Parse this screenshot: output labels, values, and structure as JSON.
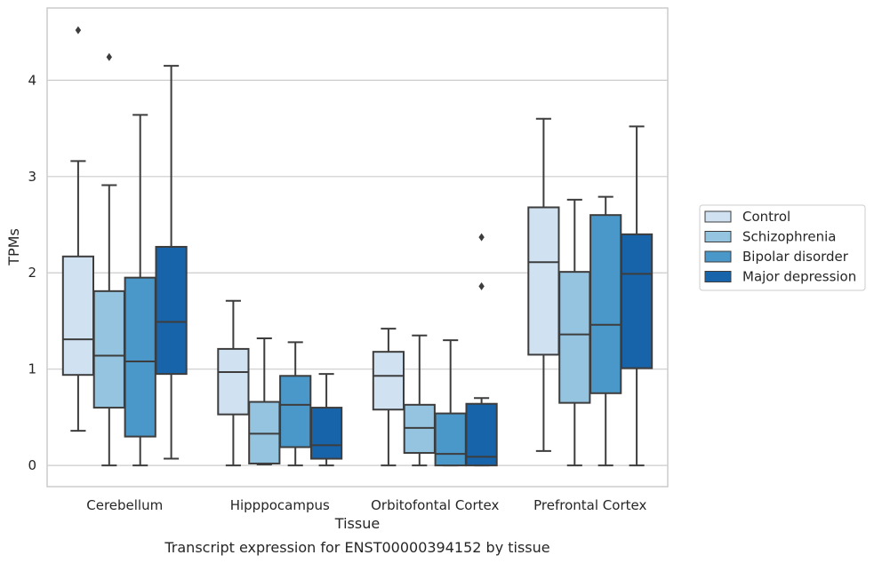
{
  "chart_data": {
    "type": "box",
    "title": "Transcript expression for ENST00000394152 by tissue",
    "xlabel": "Tissue",
    "ylabel": "TPMs",
    "ylim": [
      -0.22,
      4.75
    ],
    "yticks": [
      0,
      1,
      2,
      3,
      4
    ],
    "grid": true,
    "legend_position": "right",
    "categories": [
      "Cerebellum",
      "Hipppocampus",
      "Orbitofontal Cortex",
      "Prefrontal Cortex"
    ],
    "series": [
      {
        "name": "Control",
        "color": "#d0e1f2",
        "boxes": [
          {
            "whislo": 0.36,
            "q1": 0.94,
            "med": 1.31,
            "q3": 2.17,
            "whishi": 3.16,
            "fliers": [
              4.52
            ]
          },
          {
            "whislo": 0.0,
            "q1": 0.53,
            "med": 0.97,
            "q3": 1.21,
            "whishi": 1.71,
            "fliers": []
          },
          {
            "whislo": 0.0,
            "q1": 0.58,
            "med": 0.93,
            "q3": 1.18,
            "whishi": 1.42,
            "fliers": []
          },
          {
            "whislo": 0.15,
            "q1": 1.15,
            "med": 2.11,
            "q3": 2.68,
            "whishi": 3.6,
            "fliers": []
          }
        ]
      },
      {
        "name": "Schizophrenia",
        "color": "#94c4df",
        "boxes": [
          {
            "whislo": 0.0,
            "q1": 0.6,
            "med": 1.14,
            "q3": 1.81,
            "whishi": 2.91,
            "fliers": [
              4.24
            ]
          },
          {
            "whislo": 0.01,
            "q1": 0.02,
            "med": 0.33,
            "q3": 0.66,
            "whishi": 1.32,
            "fliers": []
          },
          {
            "whislo": 0.0,
            "q1": 0.13,
            "med": 0.39,
            "q3": 0.63,
            "whishi": 1.35,
            "fliers": []
          },
          {
            "whislo": 0.0,
            "q1": 0.65,
            "med": 1.36,
            "q3": 2.01,
            "whishi": 2.76,
            "fliers": []
          }
        ]
      },
      {
        "name": "Bipolar disorder",
        "color": "#4a98c9",
        "boxes": [
          {
            "whislo": 0.0,
            "q1": 0.3,
            "med": 1.08,
            "q3": 1.95,
            "whishi": 3.64,
            "fliers": []
          },
          {
            "whislo": 0.0,
            "q1": 0.19,
            "med": 0.63,
            "q3": 0.93,
            "whishi": 1.28,
            "fliers": []
          },
          {
            "whislo": 0.0,
            "q1": 0.0,
            "med": 0.12,
            "q3": 0.54,
            "whishi": 1.3,
            "fliers": []
          },
          {
            "whislo": 0.0,
            "q1": 0.75,
            "med": 1.46,
            "q3": 2.6,
            "whishi": 2.79,
            "fliers": []
          }
        ]
      },
      {
        "name": "Major depression",
        "color": "#1764ab",
        "boxes": [
          {
            "whislo": 0.07,
            "q1": 0.95,
            "med": 1.49,
            "q3": 2.27,
            "whishi": 4.15,
            "fliers": []
          },
          {
            "whislo": 0.0,
            "q1": 0.07,
            "med": 0.21,
            "q3": 0.6,
            "whishi": 0.95,
            "fliers": []
          },
          {
            "whislo": 0.0,
            "q1": 0.0,
            "med": 0.09,
            "q3": 0.64,
            "whishi": 0.7,
            "fliers": [
              1.86,
              2.37
            ]
          },
          {
            "whislo": 0.0,
            "q1": 1.01,
            "med": 1.99,
            "q3": 2.4,
            "whishi": 3.52,
            "fliers": []
          }
        ]
      }
    ]
  }
}
